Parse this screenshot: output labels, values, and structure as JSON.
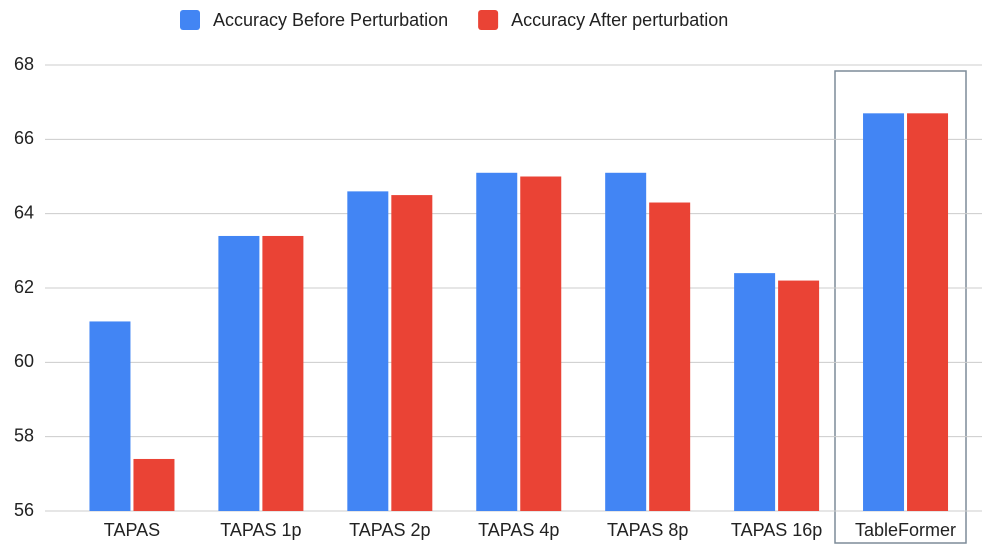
{
  "chart_data": {
    "type": "bar",
    "categories": [
      "TAPAS",
      "TAPAS 1p",
      "TAPAS 2p",
      "TAPAS 4p",
      "TAPAS 8p",
      "TAPAS 16p",
      "TableFormer"
    ],
    "series": [
      {
        "name": "Accuracy Before Perturbation",
        "color": "#4285f4",
        "values": [
          61.1,
          63.4,
          64.6,
          65.1,
          65.1,
          62.4,
          66.7
        ]
      },
      {
        "name": "Accuracy After perturbation",
        "color": "#ea4335",
        "values": [
          57.4,
          63.4,
          64.5,
          65.0,
          64.3,
          62.2,
          66.7
        ]
      }
    ],
    "ylim": [
      56,
      68
    ],
    "yticks": [
      56,
      58,
      60,
      62,
      64,
      66,
      68
    ],
    "grid": true,
    "legend": "top"
  }
}
